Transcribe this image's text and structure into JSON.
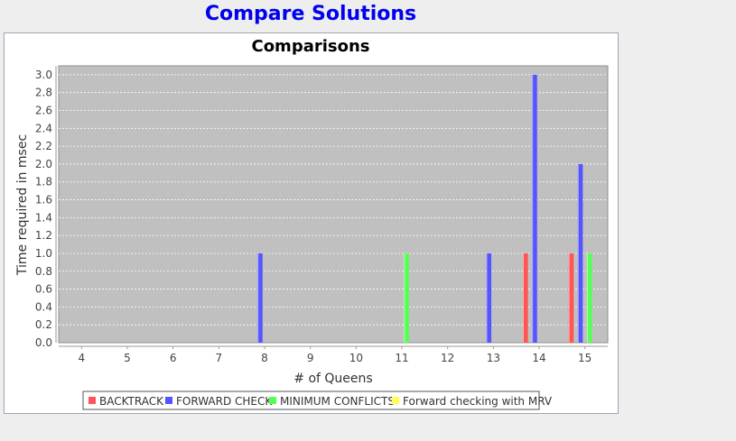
{
  "window": {
    "title": "Compare Solutions"
  },
  "chart_data": {
    "type": "bar",
    "title": "Comparisons",
    "xlabel": "# of Queens",
    "ylabel": "Time required in msec",
    "categories": [
      "4",
      "5",
      "6",
      "7",
      "8",
      "9",
      "10",
      "11",
      "12",
      "13",
      "14",
      "15"
    ],
    "ylim": [
      0,
      3.1
    ],
    "yticks": [
      0.0,
      0.2,
      0.4,
      0.6,
      0.8,
      1.0,
      1.2,
      1.4,
      1.6,
      1.8,
      2.0,
      2.2,
      2.4,
      2.6,
      2.8,
      3.0
    ],
    "grid": true,
    "legend_position": "bottom",
    "series": [
      {
        "name": "BACKTRACK",
        "color": "#ff5555",
        "values": [
          0,
          0,
          0,
          0,
          0,
          0,
          0,
          0,
          0,
          0,
          1,
          1
        ]
      },
      {
        "name": "FORWARD CHECK",
        "color": "#5555ff",
        "values": [
          0,
          0,
          0,
          0,
          1,
          0,
          0,
          0,
          0,
          1,
          3,
          2
        ]
      },
      {
        "name": "MINIMUM CONFLICTS",
        "color": "#55ff55",
        "values": [
          0,
          0,
          0,
          0,
          0,
          0,
          0,
          1,
          0,
          0,
          0,
          1
        ]
      },
      {
        "name": "Forward checking with MRV",
        "color": "#ffff55",
        "values": [
          0,
          0,
          0,
          0,
          0,
          0,
          0,
          0,
          0,
          0,
          0,
          0
        ]
      }
    ]
  }
}
